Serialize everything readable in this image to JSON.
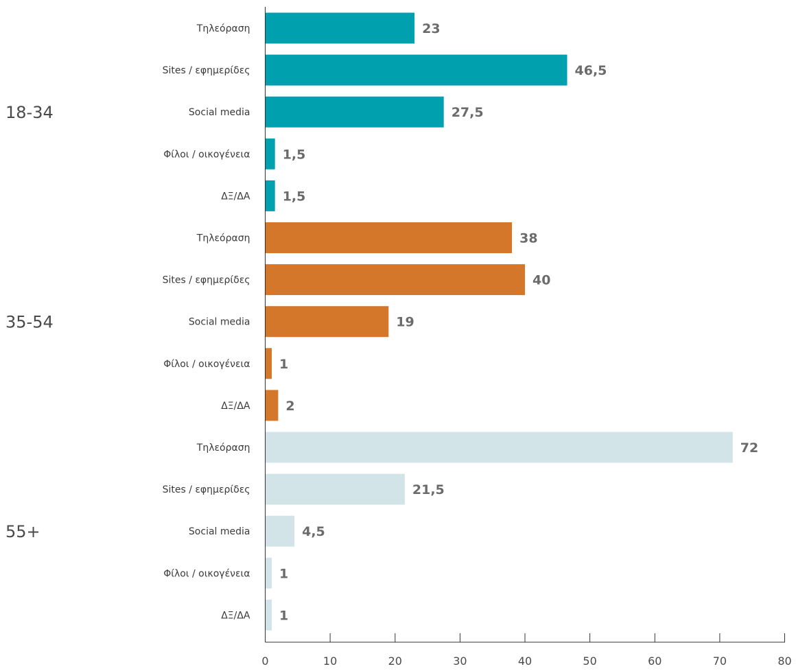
{
  "chart_data": {
    "type": "bar",
    "orientation": "horizontal",
    "xlim": [
      0,
      80
    ],
    "xticks": [
      "0",
      "10",
      "20",
      "30",
      "40",
      "50",
      "60",
      "70",
      "80"
    ],
    "grid": false,
    "groups": [
      {
        "name": "18-34",
        "color": "#00A0AF",
        "bars": [
          {
            "label": "Τηλεόραση",
            "value": 23,
            "value_label": "23"
          },
          {
            "label": "Sites / εφημερίδες",
            "value": 46.5,
            "value_label": "46,5"
          },
          {
            "label": "Social media",
            "value": 27.5,
            "value_label": "27,5"
          },
          {
            "label": "Φίλοι / οικογένεια",
            "value": 1.5,
            "value_label": "1,5"
          },
          {
            "label": "ΔΞ/ΔΑ",
            "value": 1.5,
            "value_label": "1,5"
          }
        ]
      },
      {
        "name": "35-54",
        "color": "#D4772A",
        "bars": [
          {
            "label": "Τηλεόραση",
            "value": 38,
            "value_label": "38"
          },
          {
            "label": "Sites / εφημερίδες",
            "value": 40,
            "value_label": "40"
          },
          {
            "label": "Social media",
            "value": 19,
            "value_label": "19"
          },
          {
            "label": "Φίλοι / οικογένεια",
            "value": 1,
            "value_label": "1"
          },
          {
            "label": "ΔΞ/ΔΑ",
            "value": 2,
            "value_label": "2"
          }
        ]
      },
      {
        "name": "55+",
        "color": "#D2E4E8",
        "bars": [
          {
            "label": "Τηλεόραση",
            "value": 72,
            "value_label": "72"
          },
          {
            "label": "Sites / εφημερίδες",
            "value": 21.5,
            "value_label": "21,5"
          },
          {
            "label": "Social media",
            "value": 4.5,
            "value_label": "4,5"
          },
          {
            "label": "Φίλοι / οικογένεια",
            "value": 1,
            "value_label": "1"
          },
          {
            "label": "ΔΞ/ΔΑ",
            "value": 1,
            "value_label": "1"
          }
        ]
      }
    ]
  }
}
